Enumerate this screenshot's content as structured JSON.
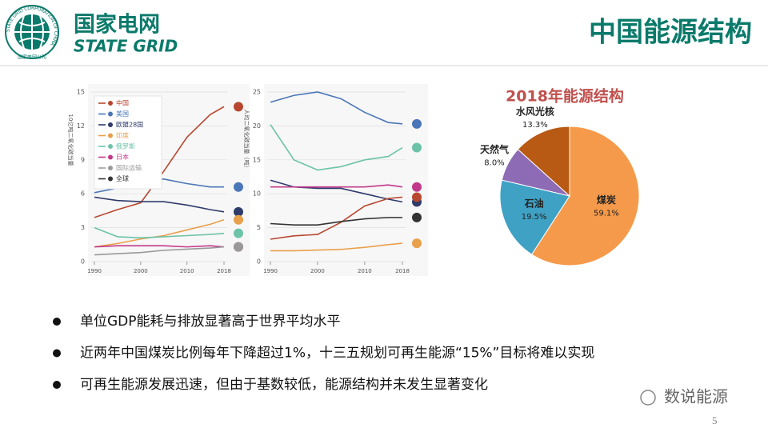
{
  "header": {
    "logo_name": "国家电网",
    "logo_en": "STATE GRID",
    "logo_ring_cn": "国家电网公司",
    "logo_ring_en": "STATE GRID CORPORATION OF CHINA",
    "title": "中国能源结构"
  },
  "chart_data": [
    {
      "type": "line",
      "ylabel": "10亿吨二氧化碳当量",
      "x": [
        1990,
        1995,
        2000,
        2005,
        2010,
        2015,
        2018
      ],
      "xlim": [
        1990,
        2018
      ],
      "xticks": [
        1990,
        2000,
        2010,
        2018
      ],
      "ylim": [
        0,
        15
      ],
      "yticks": [
        0,
        3,
        6,
        9,
        12,
        15
      ],
      "grid": true,
      "legend": "top-left",
      "series": [
        {
          "name": "中国",
          "color": "#b8472f",
          "values": [
            3.9,
            4.6,
            5.2,
            8.0,
            11.0,
            13.0,
            13.7
          ]
        },
        {
          "name": "美国",
          "color": "#4a76b8",
          "values": [
            6.1,
            6.5,
            7.2,
            7.3,
            6.9,
            6.6,
            6.6
          ]
        },
        {
          "name": "欧盟28国",
          "color": "#2f3b6b",
          "values": [
            5.7,
            5.4,
            5.3,
            5.3,
            5.0,
            4.6,
            4.4
          ]
        },
        {
          "name": "印度",
          "color": "#e9a04b",
          "values": [
            1.3,
            1.6,
            2.0,
            2.3,
            2.8,
            3.3,
            3.7
          ]
        },
        {
          "name": "俄罗斯",
          "color": "#6cc3a8",
          "values": [
            3.0,
            2.2,
            2.1,
            2.2,
            2.3,
            2.4,
            2.5
          ]
        },
        {
          "name": "日本",
          "color": "#c2388b",
          "values": [
            1.3,
            1.4,
            1.4,
            1.4,
            1.3,
            1.4,
            1.3
          ]
        },
        {
          "name": "国际运输",
          "color": "#999999",
          "values": [
            0.6,
            0.7,
            0.8,
            1.0,
            1.1,
            1.2,
            1.3
          ]
        },
        {
          "name": "全球",
          "color": "#333333",
          "values": [
            null,
            null,
            null,
            null,
            null,
            null,
            null
          ]
        }
      ]
    },
    {
      "type": "line",
      "ylabel": "人均二氧化碳当量（吨）",
      "x": [
        1990,
        1995,
        2000,
        2005,
        2010,
        2015,
        2018
      ],
      "xlim": [
        1990,
        2018
      ],
      "xticks": [
        1990,
        2000,
        2010,
        2018
      ],
      "ylim": [
        0,
        25
      ],
      "yticks": [
        0,
        5,
        10,
        15,
        20,
        25
      ],
      "grid": true,
      "series": [
        {
          "color": "#4a76b8",
          "values": [
            23.5,
            24.5,
            25.0,
            24.0,
            22.0,
            20.5,
            20.3
          ]
        },
        {
          "color": "#6cc3a8",
          "values": [
            20.2,
            15.0,
            13.5,
            14.0,
            15.0,
            15.5,
            16.8
          ]
        },
        {
          "color": "#2f3b6b",
          "values": [
            12.0,
            11.0,
            10.8,
            10.8,
            10.0,
            9.2,
            8.8
          ]
        },
        {
          "color": "#c2388b",
          "values": [
            11.0,
            11.0,
            11.0,
            11.0,
            11.0,
            11.3,
            11.0
          ]
        },
        {
          "color": "#b8472f",
          "values": [
            3.3,
            3.8,
            4.0,
            5.8,
            8.2,
            9.3,
            9.5
          ]
        },
        {
          "color": "#333333",
          "values": [
            5.6,
            5.4,
            5.4,
            5.9,
            6.3,
            6.5,
            6.5
          ]
        },
        {
          "color": "#e9a04b",
          "values": [
            1.6,
            1.6,
            1.7,
            1.8,
            2.1,
            2.5,
            2.7
          ]
        }
      ]
    },
    {
      "type": "pie",
      "title": "2018年能源结构",
      "categories": [
        "煤炭",
        "石油",
        "天然气",
        "水风光核"
      ],
      "values": [
        59.1,
        19.5,
        8.0,
        13.3
      ],
      "value_labels": [
        "59.1%",
        "19.5%",
        "8.0%",
        "13.3%"
      ],
      "colors": [
        "#f59a4a",
        "#3fa1c4",
        "#8e6bb5",
        "#b85a14"
      ]
    }
  ],
  "bullets": [
    "单位GDP能耗与排放显著高于世界平均水平",
    "近两年中国煤炭比例每年下降超过1%，十三五规划可再生能源“15%”目标将难以实现",
    "可再生能源发展迅速，但由于基数较低，能源结构并未发生显著变化"
  ],
  "footer": {
    "watermark": "数说能源",
    "page": "5"
  }
}
